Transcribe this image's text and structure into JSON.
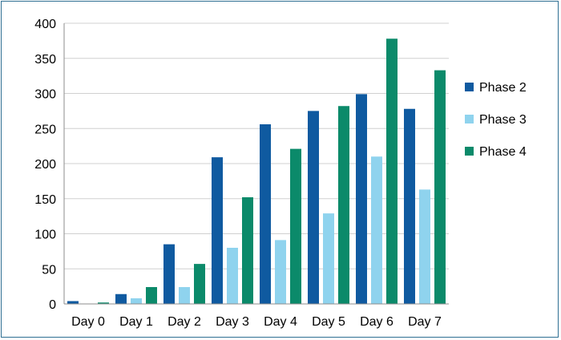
{
  "chart_data": {
    "type": "bar",
    "title": "",
    "xlabel": "",
    "ylabel": "",
    "categories": [
      "Day 0",
      "Day 1",
      "Day 2",
      "Day 3",
      "Day 4",
      "Day 5",
      "Day 6",
      "Day 7"
    ],
    "series": [
      {
        "name": "Phase 2",
        "color": "#0f5aa0",
        "values": [
          4,
          14,
          85,
          209,
          256,
          275,
          299,
          278
        ]
      },
      {
        "name": "Phase 3",
        "color": "#8fd3ee",
        "values": [
          0,
          8,
          24,
          80,
          91,
          129,
          210,
          163
        ]
      },
      {
        "name": "Phase 4",
        "color": "#0b8a6a",
        "values": [
          2,
          24,
          57,
          152,
          221,
          282,
          378,
          333
        ]
      }
    ],
    "ylim": [
      0,
      400
    ],
    "yticks": [
      0,
      50,
      100,
      150,
      200,
      250,
      300,
      350,
      400
    ],
    "grid": true,
    "legend": "right"
  }
}
